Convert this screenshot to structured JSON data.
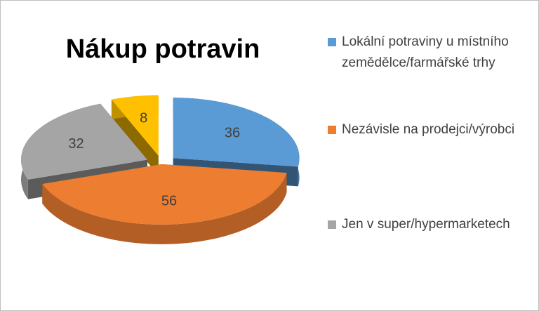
{
  "chart_data": {
    "type": "pie3d",
    "title": "Nákup potravin",
    "categories": [
      "Lokální potraviny u místního zemědělce/farmářské trhy",
      "Nezávisle na prodejci/výrobci",
      "Jen v super/hypermarketech",
      null
    ],
    "values": [
      36,
      56,
      32,
      8
    ],
    "colors": [
      "#5b9bd5",
      "#ed7d31",
      "#a5a5a5",
      "#ffc000"
    ],
    "legend": "right"
  }
}
